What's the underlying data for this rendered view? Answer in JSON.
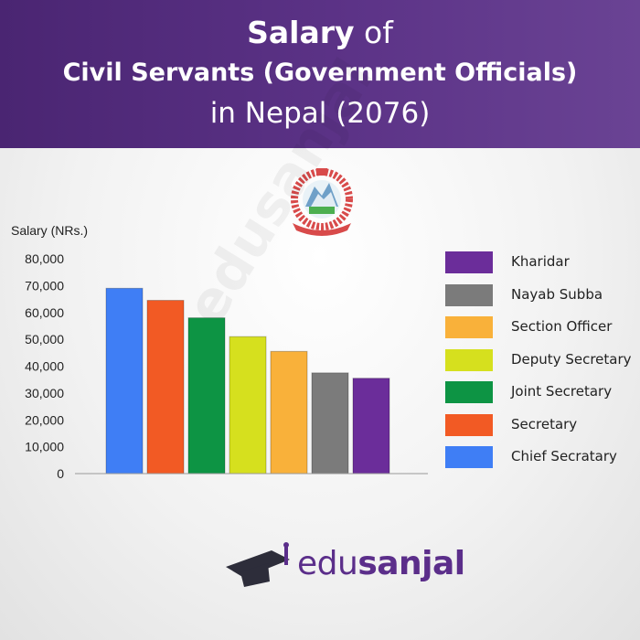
{
  "header": {
    "line1_bold": "Salary",
    "line1_rest": " of",
    "line2": "Civil Servants (Government Officials)",
    "line3": "in Nepal (2076)"
  },
  "chart_data": {
    "type": "bar",
    "ylabel": "Salary (NRs.)",
    "ylim": [
      0,
      80000
    ],
    "yticks": [
      0,
      10000,
      20000,
      30000,
      40000,
      50000,
      60000,
      70000,
      80000
    ],
    "ytick_labels": [
      "0",
      "10,000",
      "20,000",
      "30,000",
      "40,000",
      "50,000",
      "60,000",
      "70,000",
      "80,000"
    ],
    "grid": false,
    "legend_position": "right",
    "categories": [
      "Chief Secratary",
      "Secretary",
      "Joint Secretary",
      "Deputy Secretary",
      "Section Officer",
      "Nayab Subba",
      "Kharidar"
    ],
    "values": [
      69000,
      64500,
      58000,
      51000,
      45500,
      37500,
      35500
    ],
    "colors": [
      "#3f7ef5",
      "#f25a24",
      "#0d9444",
      "#d6e01e",
      "#f9b13a",
      "#7b7b7b",
      "#6b2d9a"
    ],
    "legend_order": [
      "Kharidar",
      "Nayab Subba",
      "Section Officer",
      "Deputy Secretary",
      "Joint Secretary",
      "Secretary",
      "Chief Secratary"
    ]
  },
  "watermark": "edusanjal",
  "brand": {
    "prefix": "edu",
    "suffix": "sanjal",
    "color": "#5b2e8a"
  }
}
